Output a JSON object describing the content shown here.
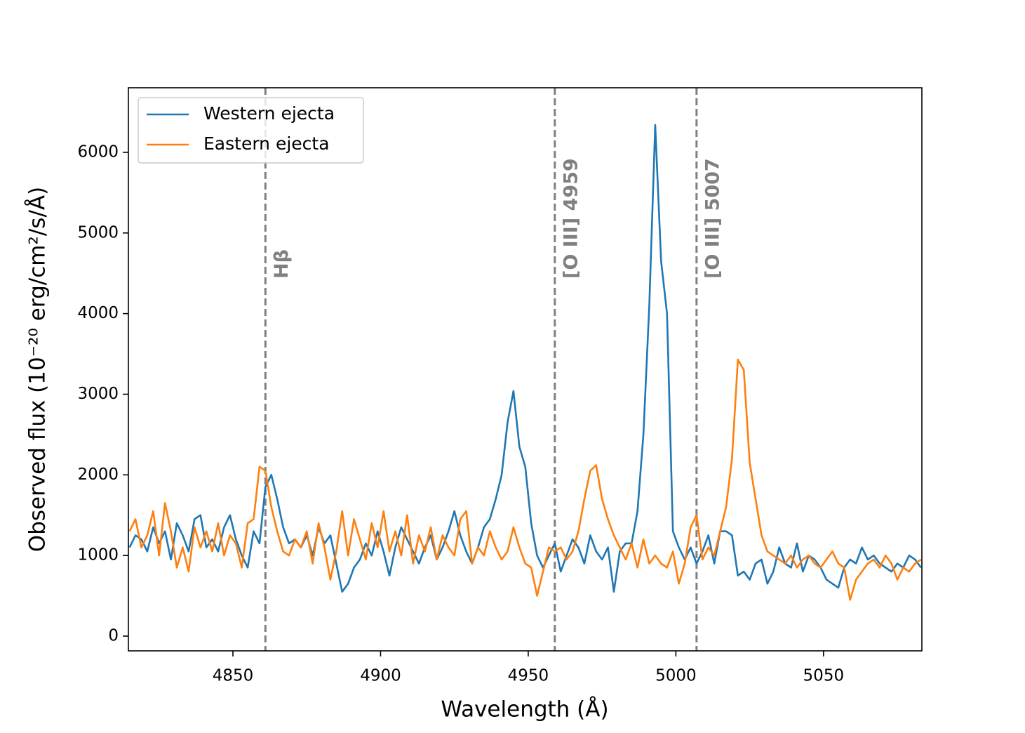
{
  "chart_data": {
    "type": "line",
    "xlabel": "Wavelength (Å)",
    "ylabel": "Observed flux (10⁻²⁰ erg/cm²/s/Å)",
    "xlim": [
      4814.6,
      5083.3
    ],
    "ylim": [
      -183,
      6801
    ],
    "xticks": [
      4850,
      4900,
      4950,
      5000,
      5050
    ],
    "yticks": [
      0,
      1000,
      2000,
      3000,
      4000,
      5000,
      6000
    ],
    "legend": "upper left",
    "annotations": [
      {
        "x": 4861,
        "label": "Hβ",
        "color": "#808080"
      },
      {
        "x": 4959,
        "label": "[O III] 4959",
        "color": "#808080"
      },
      {
        "x": 5007,
        "label": "[O III] 5007",
        "color": "#808080"
      }
    ],
    "x": [
      4815,
      4817,
      4819,
      4821,
      4823,
      4825,
      4827,
      4829,
      4831,
      4833,
      4835,
      4837,
      4839,
      4841,
      4843,
      4845,
      4847,
      4849,
      4851,
      4853,
      4855,
      4857,
      4859,
      4861,
      4863,
      4865,
      4867,
      4869,
      4871,
      4873,
      4875,
      4877,
      4879,
      4881,
      4883,
      4885,
      4887,
      4889,
      4891,
      4893,
      4895,
      4897,
      4899,
      4901,
      4903,
      4905,
      4907,
      4909,
      4911,
      4913,
      4915,
      4917,
      4919,
      4921,
      4923,
      4925,
      4927,
      4929,
      4931,
      4933,
      4935,
      4937,
      4939,
      4941,
      4943,
      4945,
      4947,
      4949,
      4951,
      4953,
      4955,
      4957,
      4959,
      4961,
      4963,
      4965,
      4967,
      4969,
      4971,
      4973,
      4975,
      4977,
      4979,
      4981,
      4983,
      4985,
      4987,
      4989,
      4991,
      4993,
      4995,
      4997,
      4999,
      5001,
      5003,
      5005,
      5007,
      5009,
      5011,
      5013,
      5015,
      5017,
      5019,
      5021,
      5023,
      5025,
      5027,
      5029,
      5031,
      5033,
      5035,
      5037,
      5039,
      5041,
      5043,
      5045,
      5047,
      5049,
      5051,
      5053,
      5055,
      5057,
      5059,
      5061,
      5063,
      5065,
      5067,
      5069,
      5071,
      5073,
      5075,
      5077,
      5079,
      5081,
      5083
    ],
    "series": [
      {
        "name": "Western ejecta",
        "color": "#1f77b4",
        "values": [
          1100,
          1250,
          1200,
          1050,
          1350,
          1150,
          1300,
          950,
          1400,
          1250,
          1050,
          1450,
          1500,
          1100,
          1200,
          1050,
          1350,
          1500,
          1200,
          1000,
          850,
          1300,
          1150,
          1850,
          2000,
          1700,
          1350,
          1150,
          1200,
          1100,
          1250,
          1000,
          1350,
          1150,
          1250,
          900,
          550,
          650,
          850,
          950,
          1150,
          1000,
          1300,
          1050,
          750,
          1100,
          1350,
          1200,
          1050,
          900,
          1100,
          1250,
          950,
          1100,
          1300,
          1550,
          1250,
          1050,
          900,
          1100,
          1350,
          1450,
          1700,
          2000,
          2650,
          3040,
          2350,
          2100,
          1400,
          1000,
          850,
          1000,
          1150,
          800,
          1000,
          1200,
          1100,
          900,
          1250,
          1050,
          950,
          1100,
          550,
          1050,
          1150,
          1150,
          1550,
          2500,
          4100,
          6340,
          4650,
          4000,
          1300,
          1100,
          950,
          1100,
          900,
          1050,
          1250,
          900,
          1300,
          1300,
          1250,
          750,
          800,
          700,
          900,
          950,
          650,
          800,
          1100,
          900,
          850,
          1150,
          800,
          1000,
          950,
          850,
          700,
          650,
          600,
          850,
          950,
          900,
          1100,
          950,
          1000,
          900,
          850,
          800,
          900,
          850,
          1000,
          950,
          850
        ]
      },
      {
        "name": "Eastern ejecta",
        "color": "#ff7f0e",
        "values": [
          1300,
          1450,
          1100,
          1250,
          1550,
          1000,
          1650,
          1300,
          850,
          1100,
          800,
          1350,
          1100,
          1300,
          1050,
          1400,
          1000,
          1250,
          1150,
          850,
          1400,
          1450,
          2100,
          2050,
          1600,
          1300,
          1050,
          1000,
          1200,
          1100,
          1300,
          900,
          1400,
          1100,
          700,
          1050,
          1550,
          1000,
          1450,
          1200,
          950,
          1400,
          1100,
          1550,
          1050,
          1300,
          1000,
          1500,
          900,
          1250,
          1050,
          1350,
          950,
          1250,
          1100,
          1000,
          1450,
          1550,
          900,
          1100,
          1000,
          1300,
          1100,
          950,
          1050,
          1350,
          1100,
          900,
          850,
          500,
          800,
          1100,
          1050,
          1100,
          950,
          1050,
          1300,
          1700,
          2050,
          2120,
          1700,
          1450,
          1250,
          1100,
          950,
          1150,
          850,
          1200,
          900,
          1000,
          900,
          850,
          1050,
          650,
          900,
          1350,
          1500,
          950,
          1100,
          1000,
          1300,
          1600,
          2200,
          3430,
          3300,
          2150,
          1700,
          1250,
          1050,
          1000,
          950,
          900,
          1000,
          850,
          950,
          1000,
          900,
          850,
          950,
          1050,
          900,
          850,
          450,
          700,
          800,
          900,
          950,
          850,
          1000,
          900,
          700,
          850,
          800,
          900,
          950
        ]
      }
    ]
  }
}
